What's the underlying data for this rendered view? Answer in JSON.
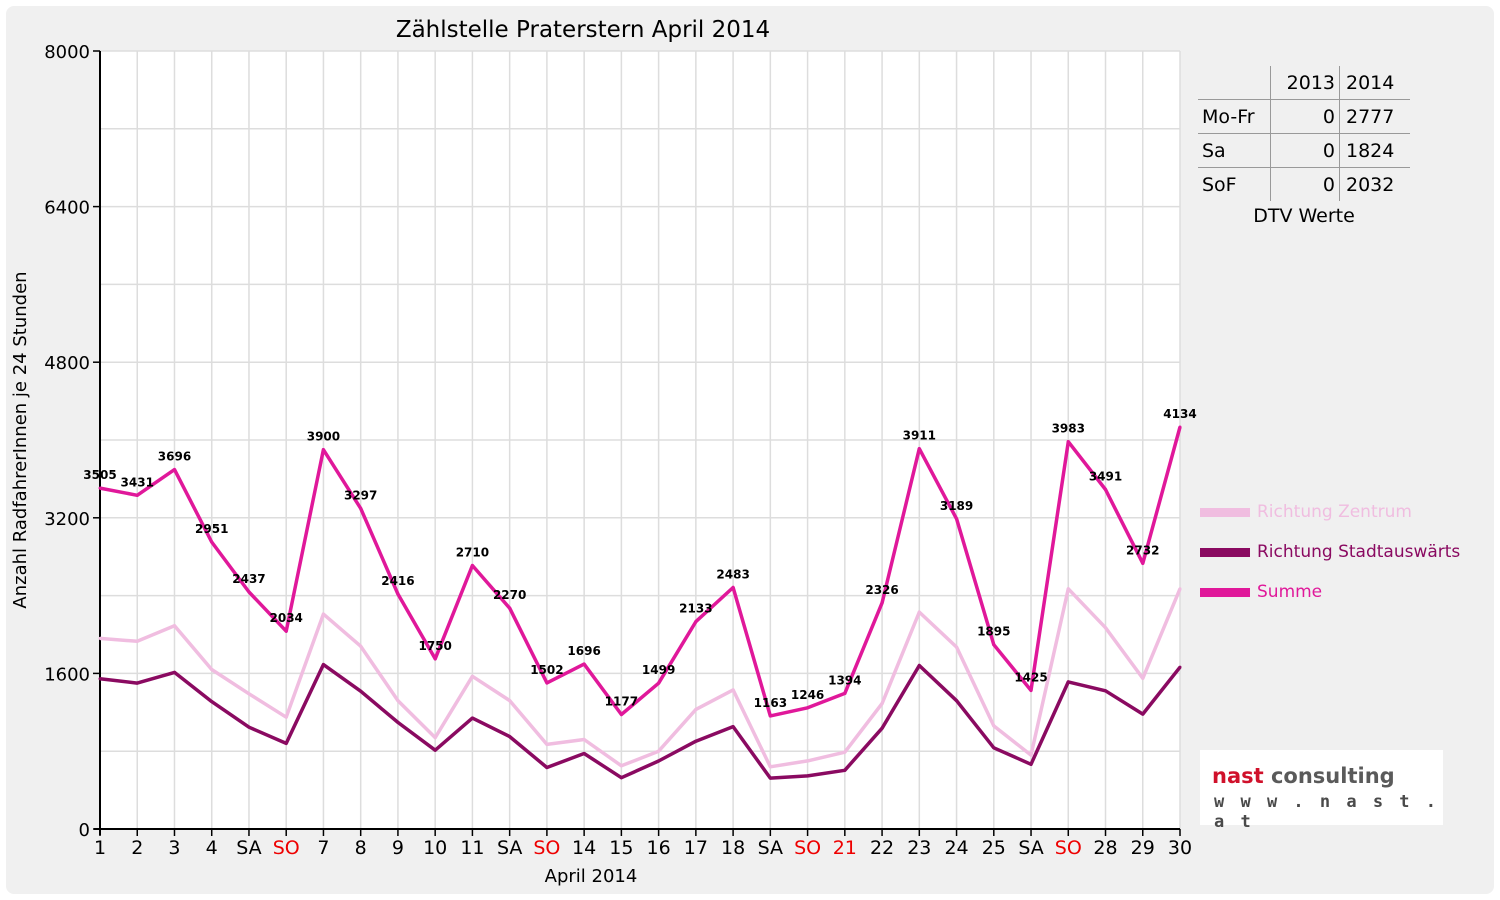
{
  "chart_data": {
    "type": "line",
    "title": "Zählstelle Praterstern April 2014",
    "xlabel": "April 2014",
    "ylabel": "Anzahl RadfahrerInnen je 24 Stunden",
    "ylim": [
      0,
      8000
    ],
    "yticks": [
      "0",
      "1600",
      "3200",
      "4800",
      "6400",
      "8000"
    ],
    "grid": true,
    "legend_position": "right",
    "categories": [
      "1",
      "2",
      "3",
      "4",
      "SA",
      "SO",
      "7",
      "8",
      "9",
      "10",
      "11",
      "SA",
      "SO",
      "14",
      "15",
      "16",
      "17",
      "18",
      "SA",
      "SO",
      "21",
      "22",
      "23",
      "24",
      "25",
      "SA",
      "SO",
      "28",
      "29",
      "30"
    ],
    "red_categories": [
      5,
      12,
      19,
      20,
      26
    ],
    "series": [
      {
        "name": "Richtung Zentrum",
        "color": "#f0bde0",
        "values": [
          1960,
          1930,
          2090,
          1640,
          1390,
          1150,
          2210,
          1880,
          1320,
          940,
          1570,
          1320,
          870,
          920,
          650,
          800,
          1230,
          1430,
          640,
          700,
          790,
          1290,
          2230,
          1870,
          1060,
          760,
          2470,
          2070,
          1550,
          2470
        ]
      },
      {
        "name": "Richtung Stadtauswärts",
        "color": "#8a0a61",
        "values": [
          1545,
          1500,
          1610,
          1310,
          1047,
          880,
          1690,
          1417,
          1096,
          810,
          1140,
          950,
          632,
          776,
          527,
          699,
          903,
          1053,
          523,
          546,
          604,
          1036,
          1681,
          1319,
          835,
          665,
          1513,
          1421,
          1182,
          1664
        ]
      },
      {
        "name": "Summe",
        "color": "#e0189a",
        "values": [
          3505,
          3431,
          3696,
          2951,
          2437,
          2034,
          3900,
          3297,
          2416,
          1750,
          2710,
          2270,
          1502,
          1696,
          1177,
          1499,
          2133,
          2483,
          1163,
          1246,
          1394,
          2326,
          3911,
          3189,
          1895,
          1425,
          3983,
          3491,
          2732,
          4134
        ]
      }
    ],
    "data_labels": [
      "3505",
      "3431",
      "3696",
      "2951",
      "2437",
      "2034",
      "3900",
      "3297",
      "2416",
      "1750",
      "2710",
      "2270",
      "1502",
      "1696",
      "1177",
      "1499",
      "2133",
      "2483",
      "1163",
      "1246",
      "1394",
      "2326",
      "3911",
      "3189",
      "1895",
      "1425",
      "3983",
      "3491",
      "2732",
      "4134"
    ]
  },
  "dtv_table": {
    "columns": [
      "",
      "2013",
      "2014"
    ],
    "rows": [
      {
        "label": "Mo-Fr",
        "y2013": "0",
        "y2014": "2777"
      },
      {
        "label": "Sa",
        "y2013": "0",
        "y2014": "1824"
      },
      {
        "label": "SoF",
        "y2013": "0",
        "y2014": "2032"
      }
    ],
    "caption": "DTV Werte"
  },
  "logo": {
    "name_part1": "nast",
    "name_part2": "consulting",
    "url": "w w w . n a s t . a t"
  },
  "colors": {
    "weekend_red": "#ee0000",
    "background": "#f0f0f0"
  }
}
